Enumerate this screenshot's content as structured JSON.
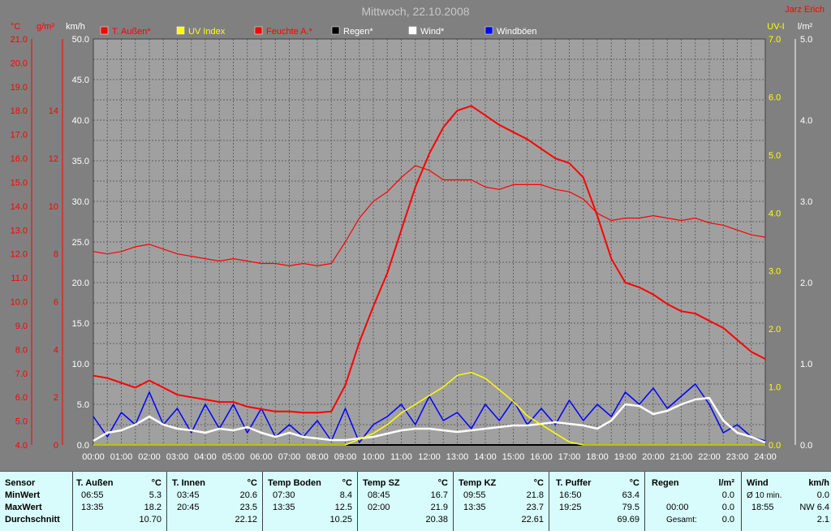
{
  "header": {
    "title": "Mittwoch, 22.10.2008",
    "author": "Jarz Erich"
  },
  "colors": {
    "temp": "#ff0000",
    "uv": "#ffff00",
    "humidity": "#ff0000",
    "rain": "#000000",
    "wind": "#ffffff",
    "gust": "#0000ff",
    "plot_bg": "#a0a0a0",
    "grid": "#606060"
  },
  "chart_data": {
    "type": "line",
    "title": "Mittwoch, 22.10.2008",
    "axes": {
      "temp": {
        "label": "°C",
        "range": [
          4.0,
          21.0
        ],
        "ticks": [
          "4.0",
          "5.0",
          "6.0",
          "7.0",
          "8.0",
          "9.0",
          "10.0",
          "11.0",
          "12.0",
          "13.0",
          "14.0",
          "15.0",
          "16.0",
          "17.0",
          "18.0",
          "19.0",
          "20.0",
          "21.0"
        ]
      },
      "humidity": {
        "label": "g/m²",
        "range": [
          0,
          17
        ],
        "ticks": [
          "0",
          "2",
          "4",
          "6",
          "8",
          "10",
          "12",
          "14"
        ]
      },
      "wind": {
        "label": "km/h",
        "range": [
          0,
          50
        ],
        "ticks": [
          "0.0",
          "5.0",
          "10.0",
          "15.0",
          "20.0",
          "25.0",
          "30.0",
          "35.0",
          "40.0",
          "45.0",
          "50.0"
        ]
      },
      "uv": {
        "label": "UV-I",
        "range": [
          0,
          7
        ],
        "ticks": [
          "0.0",
          "1.0",
          "2.0",
          "3.0",
          "4.0",
          "5.0",
          "6.0",
          "7.0"
        ]
      },
      "rain": {
        "label": "l/m²",
        "range": [
          0,
          5
        ],
        "ticks": [
          "0.0",
          "1.0",
          "2.0",
          "3.0",
          "4.0",
          "5.0"
        ]
      },
      "x": {
        "ticks": [
          "00:00",
          "01:00",
          "02:00",
          "03:00",
          "04:00",
          "05:00",
          "06:00",
          "07:00",
          "08:00",
          "09:00",
          "10:00",
          "11:00",
          "12:00",
          "13:00",
          "14:00",
          "15:00",
          "16:00",
          "17:00",
          "18:00",
          "19:00",
          "20:00",
          "21:00",
          "22:00",
          "23:00",
          "24:00"
        ]
      }
    },
    "legend": [
      "T. Außen*",
      "UV Index",
      "Feuchte A.*",
      "Regen*",
      "Wind*",
      "Windböen"
    ],
    "grid": true,
    "series": [
      {
        "name": "T. Außen*",
        "axis": "temp",
        "color": "#ff0000",
        "x": [
          0,
          0.5,
          1,
          1.5,
          2,
          2.5,
          3,
          3.5,
          4,
          4.5,
          5,
          5.5,
          6,
          6.5,
          7,
          7.5,
          8,
          8.5,
          9,
          9.5,
          10,
          10.5,
          11,
          11.5,
          12,
          12.5,
          13,
          13.5,
          14,
          14.5,
          15,
          15.5,
          16,
          16.5,
          17,
          17.5,
          18,
          18.5,
          19,
          19.5,
          20,
          20.5,
          21,
          21.5,
          22,
          22.5,
          23,
          23.5,
          24
        ],
        "y": [
          6.9,
          6.8,
          6.6,
          6.4,
          6.7,
          6.4,
          6.1,
          6.0,
          5.9,
          5.8,
          5.8,
          5.6,
          5.5,
          5.4,
          5.4,
          5.35,
          5.35,
          5.4,
          6.5,
          8.3,
          9.8,
          11.2,
          13.0,
          14.8,
          16.2,
          17.3,
          18.0,
          18.2,
          17.8,
          17.4,
          17.1,
          16.8,
          16.4,
          16.0,
          15.8,
          15.2,
          13.6,
          11.8,
          10.8,
          10.6,
          10.3,
          9.9,
          9.6,
          9.5,
          9.2,
          8.9,
          8.4,
          7.9,
          7.6
        ]
      },
      {
        "name": "Feuchte A.*",
        "axis": "humidity",
        "color": "#ff0000",
        "x": [
          0,
          0.5,
          1,
          1.5,
          2,
          2.5,
          3,
          3.5,
          4,
          4.5,
          5,
          5.5,
          6,
          6.5,
          7,
          7.5,
          8,
          8.5,
          9,
          9.5,
          10,
          10.5,
          11,
          11.5,
          12,
          12.5,
          13,
          13.5,
          14,
          14.5,
          15,
          15.5,
          16,
          16.5,
          17,
          17.5,
          18,
          18.5,
          19,
          19.5,
          20,
          20.5,
          21,
          21.5,
          22,
          22.5,
          23,
          23.5,
          24
        ],
        "y": [
          8.1,
          8.0,
          8.1,
          8.3,
          8.4,
          8.2,
          8.0,
          7.9,
          7.8,
          7.7,
          7.8,
          7.7,
          7.6,
          7.6,
          7.5,
          7.6,
          7.5,
          7.6,
          8.5,
          9.5,
          10.2,
          10.6,
          11.2,
          11.7,
          11.5,
          11.1,
          11.1,
          11.1,
          10.8,
          10.7,
          10.9,
          10.9,
          10.9,
          10.7,
          10.6,
          10.3,
          9.7,
          9.4,
          9.5,
          9.5,
          9.6,
          9.5,
          9.4,
          9.5,
          9.3,
          9.2,
          9.0,
          8.8,
          8.7
        ]
      },
      {
        "name": "UV Index",
        "axis": "uv",
        "color": "#ffff00",
        "x": [
          0,
          9.0,
          9.5,
          10,
          10.5,
          11,
          11.5,
          12,
          12.5,
          13,
          13.5,
          14,
          14.5,
          15,
          15.5,
          16,
          16.5,
          17,
          17.5,
          24
        ],
        "y": [
          0,
          0,
          0.1,
          0.2,
          0.35,
          0.55,
          0.7,
          0.85,
          1.0,
          1.2,
          1.25,
          1.15,
          0.95,
          0.75,
          0.5,
          0.35,
          0.2,
          0.05,
          0,
          0
        ]
      },
      {
        "name": "Wind*",
        "axis": "wind",
        "color": "#ffffff",
        "x": [
          0,
          0.5,
          1,
          1.5,
          2,
          2.5,
          3,
          3.5,
          4,
          4.5,
          5,
          5.5,
          6,
          6.5,
          7,
          7.5,
          8,
          8.5,
          9,
          9.5,
          10,
          10.5,
          11,
          11.5,
          12,
          12.5,
          13,
          13.5,
          14,
          14.5,
          15,
          15.5,
          16,
          16.5,
          17,
          17.5,
          18,
          18.5,
          19,
          19.5,
          20,
          20.5,
          21,
          21.5,
          22,
          22.5,
          23,
          23.5,
          24
        ],
        "y": [
          0.5,
          1.5,
          1.8,
          2.5,
          3.5,
          2.5,
          2.0,
          1.8,
          1.5,
          2.0,
          1.8,
          2.2,
          1.5,
          1.0,
          1.5,
          1.0,
          0.8,
          0.6,
          0.6,
          0.8,
          1.0,
          1.4,
          1.8,
          2.0,
          2.0,
          1.8,
          1.6,
          1.8,
          2.0,
          2.2,
          2.4,
          2.4,
          2.6,
          2.8,
          2.6,
          2.4,
          2.0,
          3.0,
          5.0,
          4.8,
          3.8,
          4.2,
          5.0,
          5.6,
          5.8,
          3.0,
          1.5,
          1.0,
          0.3
        ]
      },
      {
        "name": "Windböen",
        "axis": "wind",
        "color": "#0000ff",
        "x": [
          0,
          0.5,
          1,
          1.5,
          2,
          2.5,
          3,
          3.5,
          4,
          4.5,
          5,
          5.5,
          6,
          6.5,
          7,
          7.5,
          8,
          8.5,
          9,
          9.5,
          10,
          10.5,
          11,
          11.5,
          12,
          12.5,
          13,
          13.5,
          14,
          14.5,
          15,
          15.5,
          16,
          16.5,
          17,
          17.5,
          18,
          18.5,
          19,
          19.5,
          20,
          20.5,
          21,
          21.5,
          22,
          22.5,
          23,
          23.5,
          24
        ],
        "y": [
          3.5,
          1.0,
          4.0,
          2.5,
          6.5,
          2.5,
          4.5,
          1.5,
          5.0,
          2.0,
          5.0,
          1.5,
          4.5,
          1.0,
          2.5,
          1.0,
          3.0,
          0.5,
          4.5,
          0.3,
          2.5,
          3.5,
          5.0,
          2.5,
          6.0,
          3.0,
          4.0,
          2.0,
          5.0,
          3.0,
          5.5,
          2.5,
          4.5,
          2.5,
          5.5,
          3.0,
          5.0,
          3.5,
          6.5,
          5.0,
          7.0,
          4.5,
          6.0,
          7.5,
          5.0,
          1.5,
          2.5,
          1.0,
          0.5
        ]
      },
      {
        "name": "Regen*",
        "axis": "rain",
        "color": "#000000",
        "x": [
          0,
          24
        ],
        "y": [
          0,
          0
        ]
      }
    ]
  },
  "stats": {
    "row_labels": [
      "Sensor",
      "MinWert",
      "MaxWert",
      "Durchschnitt"
    ],
    "columns": [
      {
        "name": "T. Außen",
        "unit": "°C",
        "min_time": "06:55",
        "min": "5.3",
        "max_time": "13:35",
        "max": "18.2",
        "avg": "10.70"
      },
      {
        "name": "T. Innen",
        "unit": "°C",
        "min_time": "03:45",
        "min": "20.6",
        "max_time": "20:45",
        "max": "23.5",
        "avg": "22.12"
      },
      {
        "name": "Temp Boden",
        "unit": "°C",
        "min_time": "07:30",
        "min": "8.4",
        "max_time": "13:35",
        "max": "12.5",
        "avg": "10.25"
      },
      {
        "name": "Temp SZ",
        "unit": "°C",
        "min_time": "08:45",
        "min": "16.7",
        "max_time": "02:00",
        "max": "21.9",
        "avg": "20.38"
      },
      {
        "name": "Temp KZ",
        "unit": "°C",
        "min_time": "09:55",
        "min": "21.8",
        "max_time": "13:35",
        "max": "23.7",
        "avg": "22.61"
      },
      {
        "name": "T. Puffer",
        "unit": "°C",
        "min_time": "16:50",
        "min": "63.4",
        "max_time": "19:25",
        "max": "79.5",
        "avg": "69.69"
      }
    ],
    "rain": {
      "name": "Regen",
      "unit": "l/m²",
      "r1_label": "",
      "r1_val": "0.0",
      "r2_label": "00:00",
      "r2_val": "0.0",
      "r3_label": "Gesamt:",
      "r3_val": "0.0"
    },
    "wind": {
      "name": "Wind",
      "unit": "km/h",
      "r1_label": "Ø 10 min.",
      "r1_val": "0.0",
      "r2_label": "18:55",
      "r2_val": "NW 6.4",
      "r3_label": "",
      "r3_val": "2.1"
    }
  }
}
